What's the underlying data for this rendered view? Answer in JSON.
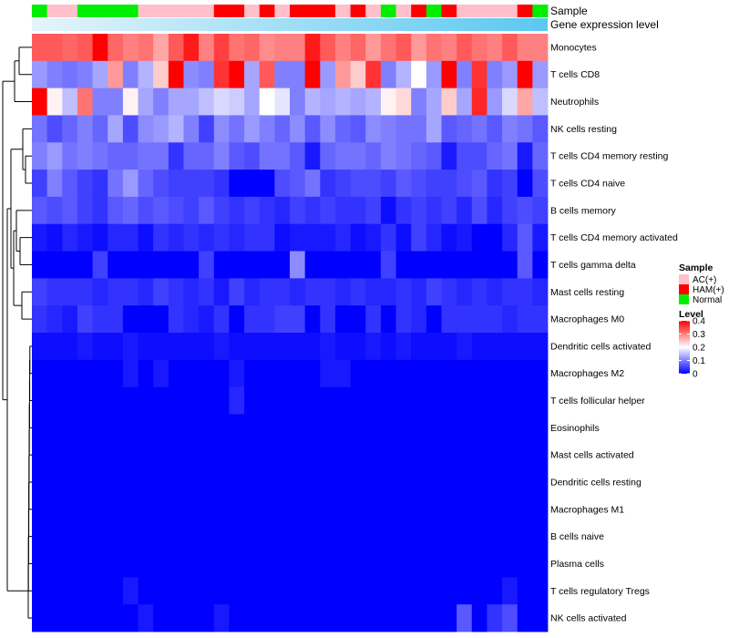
{
  "colors": {
    "AC(+)": "#ffc0cb",
    "HAM(+)": "#ff0000",
    "Normal": "#00ee00",
    "expr_band_start": "#e6f4fb",
    "expr_band_end": "#5bc8f0",
    "low": "#0000ff",
    "mid": "#ffffff",
    "high": "#ff0000"
  },
  "chart_data": {
    "type": "heatmap",
    "annotation_rows": [
      "Sample",
      "Gene expression level"
    ],
    "sample_groups": [
      "Normal",
      "AC(+)",
      "AC(+)",
      "Normal",
      "Normal",
      "Normal",
      "Normal",
      "AC(+)",
      "AC(+)",
      "AC(+)",
      "AC(+)",
      "AC(+)",
      "HAM(+)",
      "HAM(+)",
      "AC(+)",
      "HAM(+)",
      "AC(+)",
      "HAM(+)",
      "HAM(+)",
      "HAM(+)",
      "AC(+)",
      "HAM(+)",
      "AC(+)",
      "Normal",
      "AC(+)",
      "HAM(+)",
      "Normal",
      "HAM(+)",
      "AC(+)",
      "AC(+)",
      "AC(+)",
      "AC(+)",
      "HAM(+)",
      "Normal"
    ],
    "rows": [
      "Monocytes",
      "T cells CD8",
      "Neutrophils",
      "NK cells resting",
      "T cells CD4 memory resting",
      "T cells CD4 naive",
      "B cells memory",
      "T cells CD4 memory activated",
      "T cells gamma delta",
      "Mast cells resting",
      "Macrophages M0",
      "Dendritic cells activated",
      "Macrophages M2",
      "T cells follicular helper",
      "Eosinophils",
      "Mast cells activated",
      "Dendritic cells resting",
      "Macrophages M1",
      "B cells naive",
      "Plasma cells",
      "T cells regulatory  Tregs",
      "NK cells activated"
    ],
    "values": [
      [
        0.33,
        0.33,
        0.32,
        0.33,
        0.4,
        0.32,
        0.3,
        0.31,
        0.27,
        0.33,
        0.38,
        0.3,
        0.35,
        0.31,
        0.32,
        0.29,
        0.3,
        0.3,
        0.38,
        0.33,
        0.3,
        0.32,
        0.28,
        0.31,
        0.33,
        0.28,
        0.31,
        0.3,
        0.33,
        0.31,
        0.3,
        0.33,
        0.3,
        0.3
      ],
      [
        0.12,
        0.1,
        0.09,
        0.1,
        0.13,
        0.28,
        0.1,
        0.14,
        0.24,
        0.4,
        0.11,
        0.1,
        0.36,
        0.4,
        0.13,
        0.33,
        0.1,
        0.1,
        0.4,
        0.12,
        0.28,
        0.24,
        0.36,
        0.1,
        0.14,
        0.2,
        0.12,
        0.4,
        0.1,
        0.36,
        0.1,
        0.12,
        0.4,
        0.12
      ],
      [
        0.4,
        0.21,
        0.15,
        0.31,
        0.1,
        0.1,
        0.21,
        0.13,
        0.1,
        0.13,
        0.13,
        0.15,
        0.17,
        0.16,
        0.13,
        0.2,
        0.18,
        0.1,
        0.14,
        0.13,
        0.14,
        0.13,
        0.14,
        0.21,
        0.23,
        0.1,
        0.13,
        0.24,
        0.13,
        0.37,
        0.12,
        0.17,
        0.27,
        0.15
      ],
      [
        0.09,
        0.06,
        0.08,
        0.1,
        0.08,
        0.13,
        0.06,
        0.11,
        0.12,
        0.14,
        0.1,
        0.05,
        0.11,
        0.09,
        0.12,
        0.1,
        0.08,
        0.11,
        0.07,
        0.11,
        0.08,
        0.07,
        0.11,
        0.1,
        0.09,
        0.09,
        0.13,
        0.07,
        0.08,
        0.09,
        0.07,
        0.1,
        0.09,
        0.07
      ],
      [
        0.1,
        0.12,
        0.09,
        0.1,
        0.09,
        0.08,
        0.08,
        0.09,
        0.09,
        0.04,
        0.08,
        0.08,
        0.1,
        0.07,
        0.06,
        0.09,
        0.09,
        0.07,
        0.02,
        0.08,
        0.09,
        0.09,
        0.08,
        0.1,
        0.09,
        0.08,
        0.07,
        0.02,
        0.06,
        0.06,
        0.08,
        0.09,
        0.02,
        0.08
      ],
      [
        0.05,
        0.1,
        0.07,
        0.05,
        0.04,
        0.09,
        0.12,
        0.08,
        0.06,
        0.05,
        0.05,
        0.05,
        0.04,
        0.0,
        0.0,
        0.0,
        0.06,
        0.07,
        0.09,
        0.04,
        0.05,
        0.06,
        0.06,
        0.05,
        0.07,
        0.06,
        0.05,
        0.05,
        0.06,
        0.07,
        0.04,
        0.05,
        0.0,
        0.06
      ],
      [
        0.07,
        0.06,
        0.07,
        0.05,
        0.04,
        0.07,
        0.08,
        0.06,
        0.07,
        0.06,
        0.05,
        0.07,
        0.05,
        0.04,
        0.05,
        0.04,
        0.03,
        0.05,
        0.04,
        0.05,
        0.04,
        0.04,
        0.05,
        0.01,
        0.04,
        0.05,
        0.04,
        0.05,
        0.03,
        0.06,
        0.03,
        0.05,
        0.06,
        0.05
      ],
      [
        0.02,
        0.01,
        0.03,
        0.02,
        0.01,
        0.03,
        0.03,
        0.01,
        0.04,
        0.03,
        0.04,
        0.03,
        0.04,
        0.03,
        0.04,
        0.04,
        0.01,
        0.02,
        0.02,
        0.02,
        0.03,
        0.01,
        0.02,
        0.04,
        0.01,
        0.05,
        0.03,
        0.01,
        0.02,
        0.0,
        0.0,
        0.03,
        0.07,
        0.02
      ],
      [
        0.0,
        0.0,
        0.0,
        0.0,
        0.05,
        0.0,
        0.0,
        0.0,
        0.0,
        0.0,
        0.0,
        0.05,
        0.0,
        0.0,
        0.0,
        0.0,
        0.0,
        0.11,
        0.0,
        0.0,
        0.0,
        0.0,
        0.0,
        0.05,
        0.0,
        0.0,
        0.0,
        0.0,
        0.0,
        0.0,
        0.0,
        0.0,
        0.07,
        0.0
      ],
      [
        0.05,
        0.04,
        0.04,
        0.04,
        0.03,
        0.04,
        0.04,
        0.03,
        0.05,
        0.04,
        0.03,
        0.04,
        0.02,
        0.05,
        0.03,
        0.04,
        0.04,
        0.03,
        0.04,
        0.04,
        0.03,
        0.04,
        0.03,
        0.03,
        0.04,
        0.03,
        0.05,
        0.04,
        0.03,
        0.04,
        0.03,
        0.04,
        0.04,
        0.03
      ],
      [
        0.04,
        0.03,
        0.02,
        0.05,
        0.04,
        0.04,
        0.0,
        0.0,
        0.0,
        0.04,
        0.03,
        0.02,
        0.04,
        0.0,
        0.04,
        0.04,
        0.05,
        0.05,
        0.0,
        0.04,
        0.0,
        0.0,
        0.04,
        0.0,
        0.04,
        0.03,
        0.0,
        0.04,
        0.04,
        0.04,
        0.04,
        0.03,
        0.04,
        0.04
      ],
      [
        0.01,
        0.01,
        0.01,
        0.02,
        0.01,
        0.01,
        0.02,
        0.01,
        0.01,
        0.01,
        0.01,
        0.01,
        0.02,
        0.01,
        0.01,
        0.01,
        0.01,
        0.01,
        0.01,
        0.02,
        0.01,
        0.01,
        0.02,
        0.01,
        0.02,
        0.01,
        0.01,
        0.01,
        0.02,
        0.01,
        0.01,
        0.01,
        0.01,
        0.01
      ],
      [
        0.0,
        0.0,
        0.0,
        0.0,
        0.0,
        0.0,
        0.02,
        0.0,
        0.02,
        0.0,
        0.0,
        0.0,
        0.0,
        0.02,
        0.0,
        0.0,
        0.0,
        0.0,
        0.0,
        0.02,
        0.02,
        0.0,
        0.0,
        0.0,
        0.0,
        0.0,
        0.0,
        0.0,
        0.0,
        0.0,
        0.0,
        0.0,
        0.0,
        0.0
      ],
      [
        0.0,
        0.0,
        0.0,
        0.0,
        0.0,
        0.0,
        0.0,
        0.0,
        0.0,
        0.0,
        0.0,
        0.0,
        0.0,
        0.03,
        0.0,
        0.0,
        0.0,
        0.0,
        0.0,
        0.0,
        0.0,
        0.0,
        0.0,
        0.0,
        0.0,
        0.0,
        0.0,
        0.0,
        0.0,
        0.0,
        0.0,
        0.0,
        0.0,
        0.0
      ],
      [
        0.0,
        0.0,
        0.0,
        0.0,
        0.0,
        0.0,
        0.0,
        0.0,
        0.0,
        0.0,
        0.0,
        0.0,
        0.0,
        0.0,
        0.0,
        0.0,
        0.0,
        0.0,
        0.0,
        0.0,
        0.0,
        0.0,
        0.0,
        0.0,
        0.0,
        0.0,
        0.0,
        0.0,
        0.0,
        0.0,
        0.0,
        0.0,
        0.0,
        0.0
      ],
      [
        0.0,
        0.0,
        0.0,
        0.0,
        0.0,
        0.0,
        0.0,
        0.0,
        0.0,
        0.0,
        0.0,
        0.0,
        0.0,
        0.0,
        0.0,
        0.0,
        0.0,
        0.0,
        0.0,
        0.0,
        0.0,
        0.0,
        0.0,
        0.0,
        0.0,
        0.0,
        0.0,
        0.0,
        0.0,
        0.0,
        0.0,
        0.0,
        0.0,
        0.0
      ],
      [
        0.0,
        0.0,
        0.0,
        0.0,
        0.0,
        0.0,
        0.0,
        0.0,
        0.0,
        0.0,
        0.0,
        0.0,
        0.0,
        0.0,
        0.0,
        0.0,
        0.0,
        0.0,
        0.0,
        0.0,
        0.0,
        0.0,
        0.0,
        0.0,
        0.0,
        0.0,
        0.0,
        0.0,
        0.0,
        0.0,
        0.0,
        0.0,
        0.0,
        0.0
      ],
      [
        0.0,
        0.0,
        0.0,
        0.0,
        0.0,
        0.0,
        0.0,
        0.0,
        0.0,
        0.0,
        0.0,
        0.0,
        0.0,
        0.0,
        0.0,
        0.0,
        0.0,
        0.0,
        0.0,
        0.0,
        0.0,
        0.0,
        0.0,
        0.0,
        0.0,
        0.0,
        0.0,
        0.0,
        0.0,
        0.0,
        0.0,
        0.0,
        0.0,
        0.0
      ],
      [
        0.0,
        0.0,
        0.0,
        0.0,
        0.0,
        0.0,
        0.0,
        0.0,
        0.0,
        0.0,
        0.0,
        0.0,
        0.0,
        0.0,
        0.0,
        0.0,
        0.0,
        0.0,
        0.0,
        0.0,
        0.0,
        0.0,
        0.0,
        0.0,
        0.0,
        0.0,
        0.0,
        0.0,
        0.0,
        0.0,
        0.0,
        0.0,
        0.0,
        0.0
      ],
      [
        0.0,
        0.0,
        0.0,
        0.0,
        0.0,
        0.0,
        0.0,
        0.0,
        0.0,
        0.0,
        0.0,
        0.0,
        0.0,
        0.0,
        0.0,
        0.0,
        0.0,
        0.0,
        0.0,
        0.0,
        0.0,
        0.0,
        0.0,
        0.0,
        0.0,
        0.0,
        0.0,
        0.0,
        0.0,
        0.0,
        0.0,
        0.0,
        0.0,
        0.0
      ],
      [
        0.0,
        0.0,
        0.0,
        0.0,
        0.0,
        0.0,
        0.02,
        0.0,
        0.0,
        0.0,
        0.0,
        0.0,
        0.0,
        0.0,
        0.0,
        0.0,
        0.0,
        0.0,
        0.0,
        0.0,
        0.0,
        0.0,
        0.0,
        0.0,
        0.0,
        0.0,
        0.0,
        0.0,
        0.0,
        0.0,
        0.0,
        0.02,
        0.0,
        0.0
      ],
      [
        0.0,
        0.0,
        0.0,
        0.0,
        0.0,
        0.0,
        0.0,
        0.02,
        0.0,
        0.0,
        0.0,
        0.0,
        0.02,
        0.0,
        0.0,
        0.0,
        0.0,
        0.0,
        0.0,
        0.0,
        0.0,
        0.0,
        0.0,
        0.0,
        0.0,
        0.0,
        0.0,
        0.0,
        0.07,
        0.0,
        0.04,
        0.06,
        0.0,
        0.0
      ]
    ],
    "legend": {
      "sample_title": "Sample",
      "sample_entries": [
        "AC(+)",
        "HAM(+)",
        "Normal"
      ],
      "level_title": "Level",
      "level_ticks": [
        0.4,
        0.3,
        0.2,
        0.1,
        0
      ],
      "level_range": [
        0,
        0.4
      ]
    }
  }
}
